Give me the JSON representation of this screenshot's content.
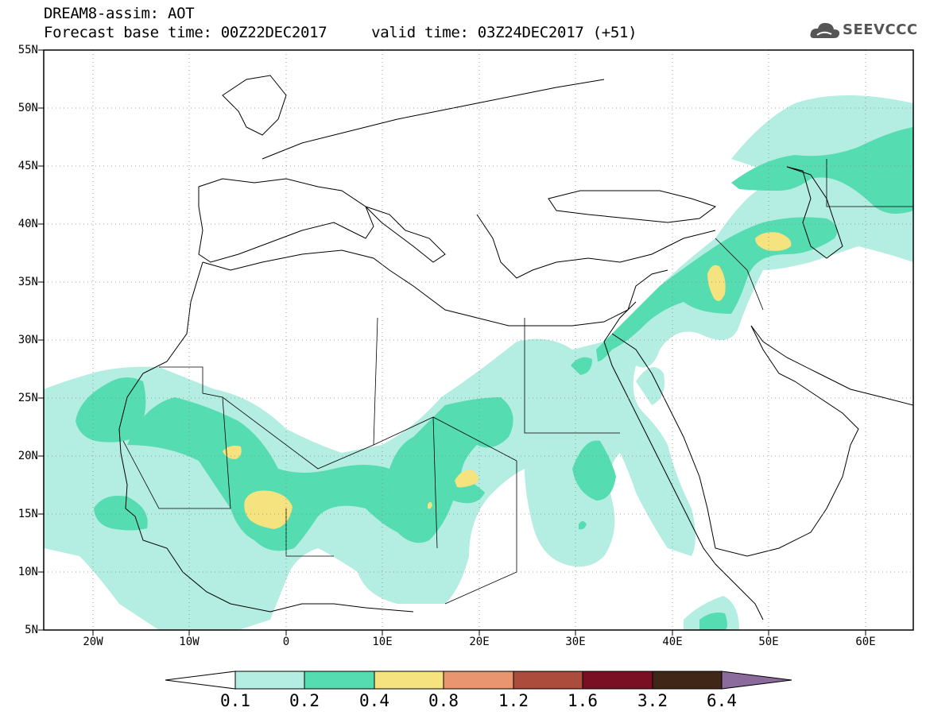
{
  "header": {
    "line1": "DREAM8-assim: AOT",
    "line2": "Forecast base time: 00Z22DEC2017     valid time: 03Z24DEC2017 (+51)"
  },
  "logo": {
    "text": "SEEVCCC",
    "icon": "cloud-icon"
  },
  "map": {
    "lat_labels": [
      "55N",
      "50N",
      "45N",
      "40N",
      "35N",
      "30N",
      "25N",
      "20N",
      "15N",
      "10N",
      "5N"
    ],
    "lon_labels": [
      "20W",
      "10W",
      "0",
      "10E",
      "20E",
      "30E",
      "40E",
      "50E",
      "60E"
    ]
  },
  "colorbar": {
    "labels": [
      "0.1",
      "0.2",
      "0.4",
      "0.8",
      "1.2",
      "1.6",
      "3.2",
      "6.4"
    ],
    "colors": {
      "below": "#ffffff",
      "c1": "#b4ede1",
      "c2": "#55dcb0",
      "c3": "#f4e37e",
      "c4": "#e89570",
      "c5": "#ab4c3c",
      "c6": "#7a0f24",
      "c7": "#3f2617",
      "above": "#8b6a9d"
    }
  }
}
